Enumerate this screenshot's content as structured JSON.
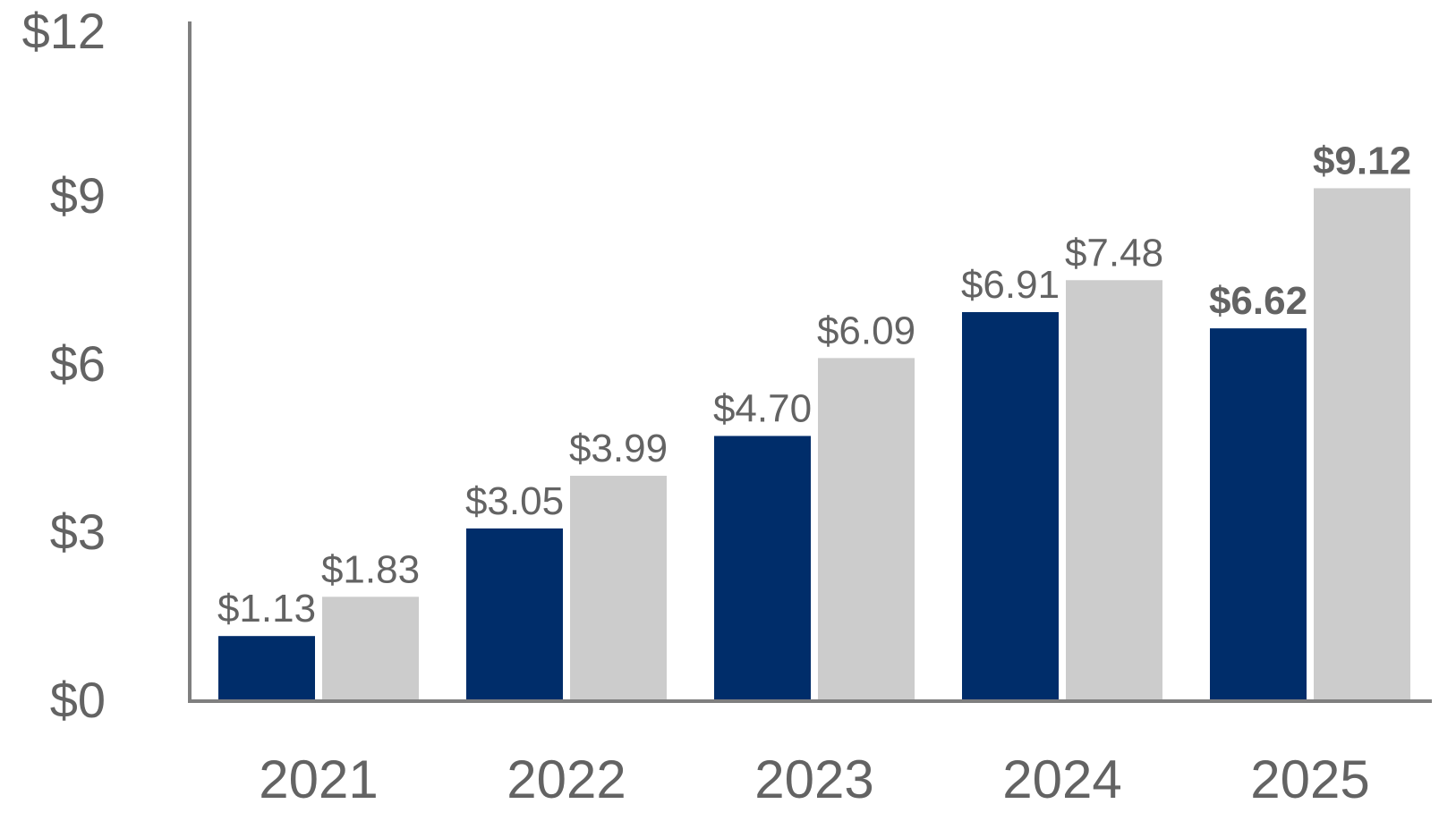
{
  "chart_data": {
    "type": "bar",
    "categories": [
      "2021",
      "2022",
      "2023",
      "2024",
      "2025"
    ],
    "series": [
      {
        "color": "#002D6A",
        "values": [
          1.13,
          3.05,
          4.7,
          6.91,
          6.62
        ],
        "labels": [
          "$1.13",
          "$3.05",
          "$4.70",
          "$6.91",
          "$6.62"
        ],
        "bold_labels": [
          false,
          false,
          false,
          false,
          true
        ]
      },
      {
        "color": "#CCCCCC",
        "values": [
          1.83,
          3.99,
          6.09,
          7.48,
          9.12
        ],
        "labels": [
          "$1.83",
          "$3.99",
          "$6.09",
          "$7.48",
          "$9.12"
        ],
        "bold_labels": [
          false,
          false,
          false,
          false,
          true
        ]
      }
    ],
    "y_ticks": [
      {
        "value": 0,
        "label": "$0"
      },
      {
        "value": 3,
        "label": "$3"
      },
      {
        "value": 6,
        "label": "$6"
      },
      {
        "value": 9,
        "label": "$9"
      },
      {
        "value": 12,
        "label": "$12"
      }
    ],
    "ylim": [
      0,
      12
    ],
    "grid": false,
    "legend": "none",
    "text_color": "#636363",
    "axis_color": "#7F7F7F"
  }
}
